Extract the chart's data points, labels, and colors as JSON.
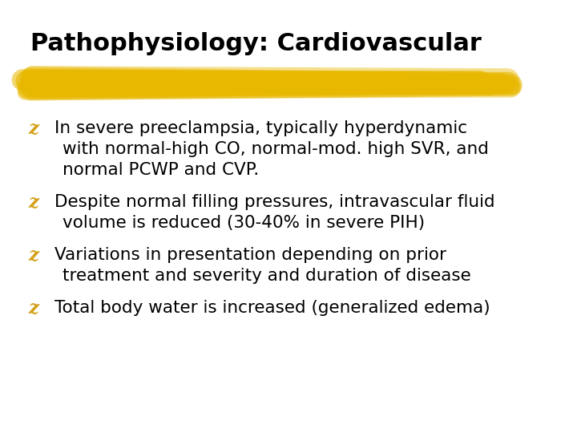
{
  "title": "Pathophysiology: Cardiovascular",
  "background_color": "#ffffff",
  "title_color": "#000000",
  "title_fontsize": 22,
  "title_fontweight": "bold",
  "bullet_color": "#D4A017",
  "text_color": "#000000",
  "text_fontsize": 15.5,
  "underline_color": "#E8B800",
  "bullets": [
    {
      "first_line": "In severe preeclampsia, typically hyperdynamic",
      "continuation": [
        "with normal-high CO, normal-mod. high SVR, and",
        "normal PCWP and CVP."
      ]
    },
    {
      "first_line": "Despite normal filling pressures, intravascular fluid",
      "continuation": [
        "volume is reduced (30-40% in severe PIH)"
      ]
    },
    {
      "first_line": "Variations in presentation depending on prior",
      "continuation": [
        "treatment and severity and duration of disease"
      ]
    },
    {
      "first_line": "Total body water is increased (generalized edema)",
      "continuation": []
    }
  ]
}
